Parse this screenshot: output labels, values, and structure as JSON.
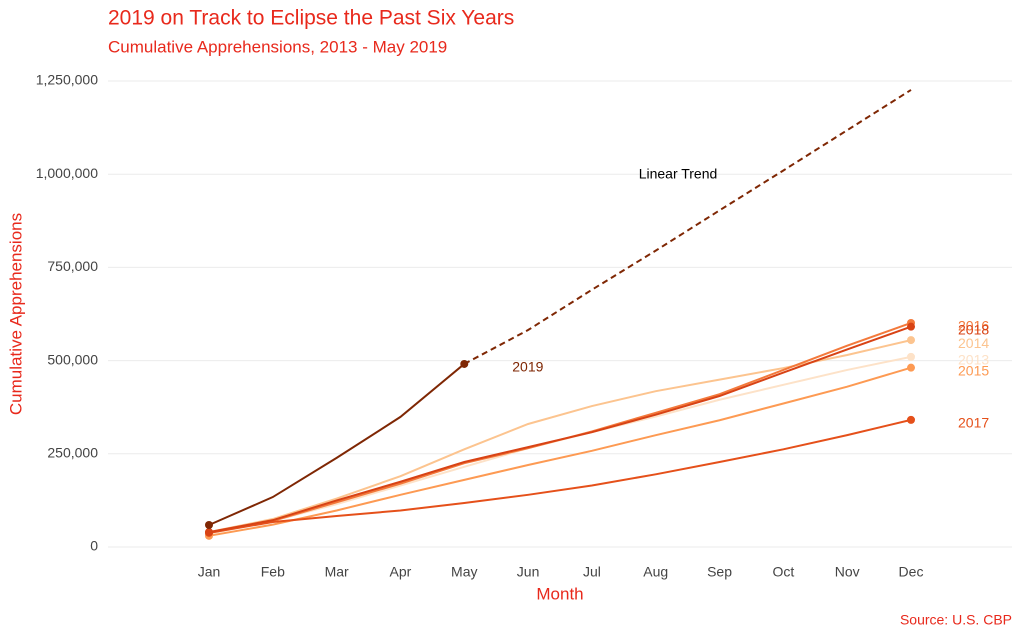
{
  "chart_data": {
    "type": "line",
    "title": "2019 on Track to Eclipse the Past Six Years",
    "subtitle": "Cumulative Apprehensions, 2013 - May 2019",
    "x_label": "Month",
    "y_label": "Cumulative Apprehensions",
    "caption": "Source: U.S. CBP",
    "categories": [
      "Jan",
      "Feb",
      "Mar",
      "Apr",
      "May",
      "Jun",
      "Jul",
      "Aug",
      "Sep",
      "Oct",
      "Nov",
      "Dec"
    ],
    "ylim": [
      0,
      1250000
    ],
    "yticks": [
      0,
      {
        "value": 250000,
        "label": "250,000"
      },
      {
        "value": 500000,
        "label": "500,000"
      },
      {
        "value": 750000,
        "label": "750,000"
      },
      {
        "value": 1000000,
        "label": "1,000,000"
      },
      {
        "value": 1250000,
        "label": "1,250,000"
      }
    ],
    "grid": true,
    "series": [
      {
        "name": "2013",
        "color": "#fde2c8",
        "values": [
          35000,
          70000,
          115000,
          165000,
          215000,
          265000,
          308000,
          350000,
          395000,
          435000,
          475000,
          510000
        ]
      },
      {
        "name": "2014",
        "color": "#fcc48f",
        "values": [
          40000,
          75000,
          130000,
          190000,
          262000,
          330000,
          378000,
          418000,
          449000,
          480000,
          515000,
          555000
        ]
      },
      {
        "name": "2015",
        "color": "#fd9a53",
        "values": [
          30000,
          60000,
          98000,
          140000,
          180000,
          220000,
          258000,
          300000,
          340000,
          385000,
          430000,
          481000
        ]
      },
      {
        "name": "2016",
        "color": "#f3793b",
        "values": [
          38000,
          70000,
          120000,
          170000,
          225000,
          265000,
          310000,
          360000,
          410000,
          475000,
          540000,
          601000
        ]
      },
      {
        "name": "2017",
        "color": "#e5501a",
        "values": [
          38000,
          67000,
          83000,
          98000,
          118000,
          140000,
          165000,
          195000,
          228000,
          262000,
          300000,
          341000
        ]
      },
      {
        "name": "2018",
        "color": "#d84315",
        "values": [
          40000,
          72000,
          125000,
          175000,
          228000,
          268000,
          308000,
          355000,
          405000,
          468000,
          530000,
          591000
        ]
      },
      {
        "name": "2019",
        "color": "#7f2704",
        "values": [
          59000,
          134000,
          239000,
          349000,
          491000,
          null,
          null,
          null,
          null,
          null,
          null,
          null
        ]
      },
      {
        "name": "Linear Trend",
        "color": "#7f2704",
        "dashed": true,
        "values": [
          null,
          null,
          null,
          null,
          491000,
          582000,
          690000,
          795000,
          903000,
          1010000,
          1118000,
          1226000
        ]
      }
    ]
  }
}
